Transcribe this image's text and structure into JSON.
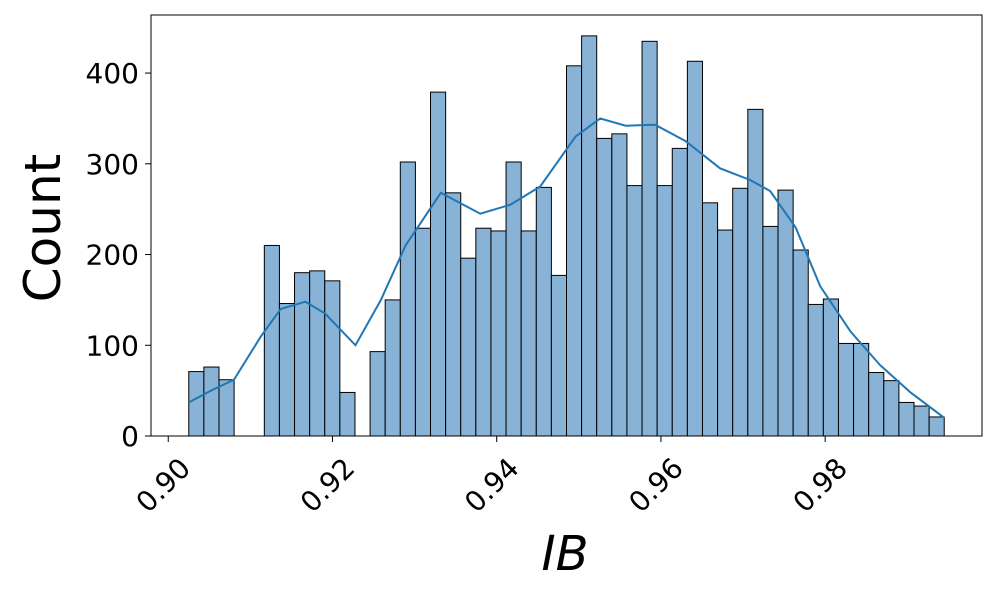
{
  "chart_data": {
    "type": "histogram",
    "xlabel": "IB",
    "ylabel": "Count",
    "bins": [
      0.9025,
      0.90434,
      0.90618,
      0.90802,
      0.90986,
      0.9117,
      0.91354,
      0.91538,
      0.91722,
      0.91906,
      0.9209,
      0.92274,
      0.92458,
      0.92642,
      0.92826,
      0.9301,
      0.93194,
      0.93378,
      0.93562,
      0.93746,
      0.9393,
      0.94114,
      0.94298,
      0.94482,
      0.94666,
      0.9485,
      0.95034,
      0.95218,
      0.95402,
      0.95586,
      0.9577,
      0.95954,
      0.96138,
      0.96322,
      0.96506,
      0.9669,
      0.96874,
      0.97058,
      0.97242,
      0.97426,
      0.9761,
      0.97794,
      0.97978,
      0.98162,
      0.98346,
      0.9853,
      0.98714,
      0.98898,
      0.99082,
      0.99266,
      0.9945
    ],
    "values": [
      71,
      76,
      62,
      0,
      0,
      210,
      146,
      180,
      182,
      171,
      48,
      0,
      93,
      150,
      302,
      229,
      379,
      268,
      196,
      229,
      226,
      302,
      226,
      274,
      177,
      408,
      441,
      328,
      333,
      276,
      435,
      276,
      317,
      413,
      257,
      227,
      273,
      360,
      231,
      271,
      205,
      145,
      151,
      102,
      102,
      70,
      61,
      37,
      33,
      21
    ],
    "color": "#88b3d7",
    "kde": {
      "color": "#1f77b4",
      "x": [
        0.9025,
        0.9052,
        0.908,
        0.9113,
        0.9137,
        0.9167,
        0.9191,
        0.9228,
        0.9259,
        0.9289,
        0.9332,
        0.938,
        0.9417,
        0.9453,
        0.9496,
        0.9526,
        0.9557,
        0.9593,
        0.963,
        0.9672,
        0.9709,
        0.9733,
        0.9764,
        0.9794,
        0.9831,
        0.9867,
        0.9904,
        0.9945
      ],
      "values": [
        37,
        50,
        62,
        110,
        140,
        148,
        135,
        100,
        150,
        210,
        268,
        245,
        255,
        275,
        330,
        350,
        342,
        343,
        325,
        295,
        282,
        270,
        230,
        165,
        115,
        78,
        48,
        20
      ]
    },
    "xlim": [
      0.8979,
      0.9991
    ],
    "xticks": [
      {
        "value": 0.9,
        "label": "0.90"
      },
      0.92,
      0.94,
      0.96,
      0.98
    ],
    "ylim": [
      0,
      464
    ],
    "yticks": [
      0,
      100,
      200,
      300,
      400
    ],
    "grid": false
  }
}
